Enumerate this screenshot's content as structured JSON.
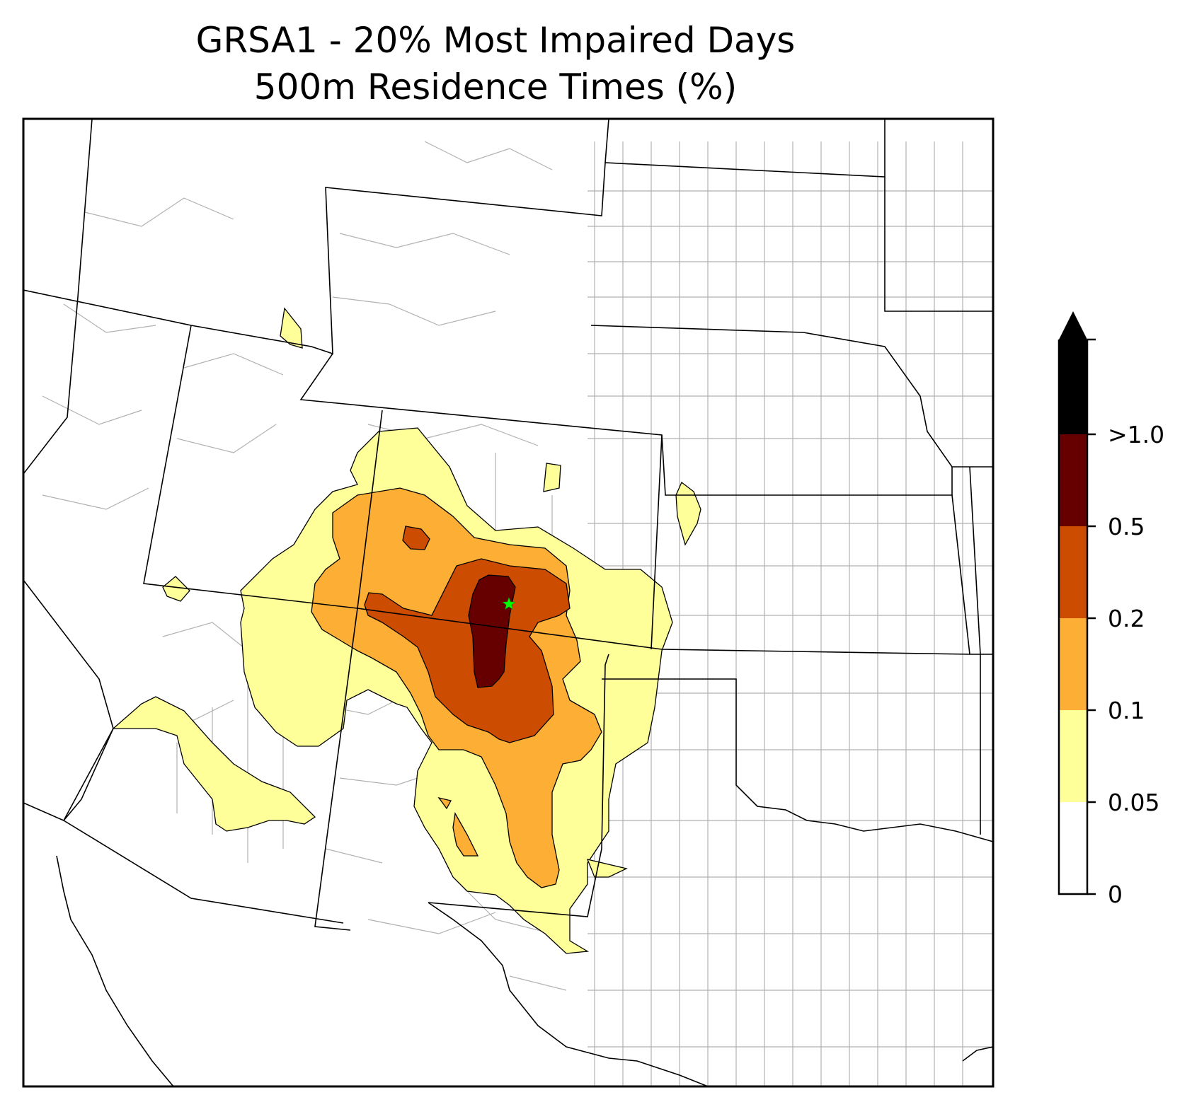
{
  "figure": {
    "title_line1": "GRSA1 - 20% Most Impaired Days",
    "title_line2": "500m Residence Times (%)"
  },
  "map": {
    "region": "Southwestern / Central United States",
    "features": [
      "state boundaries",
      "county boundaries",
      "coastline"
    ],
    "site_marker": {
      "symbol": "star",
      "color": "#00ff00",
      "site": "GRSA1"
    }
  },
  "colorbar": {
    "levels": [
      "0",
      "0.05",
      "0.1",
      "0.2",
      "0.5",
      ">1.0"
    ],
    "colors": [
      "#ffffff",
      "#ffff99",
      "#fdae35",
      "#cc4c02",
      "#660000",
      "#000000"
    ],
    "extend": "max"
  }
}
